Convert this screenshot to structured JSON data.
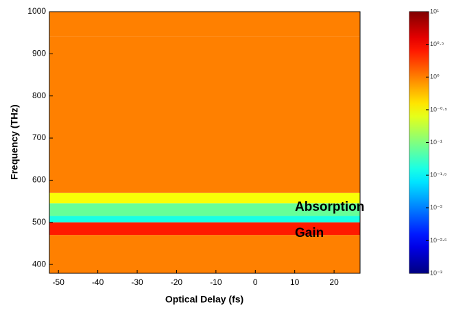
{
  "chart_data": {
    "type": "heatmap",
    "x_label": "Optical Delay (fs)",
    "y_label": "Frequency (THz)",
    "xlim": [
      -52.3,
      26.6
    ],
    "xticks": [
      -50,
      -40,
      -30,
      -20,
      -10,
      0,
      10,
      20
    ],
    "ylim": [
      379,
      1000
    ],
    "yticks": [
      400,
      500,
      600,
      700,
      800,
      900,
      1000
    ],
    "y_bins": [
      379,
      470,
      500,
      515,
      545,
      570,
      940,
      1000
    ],
    "values": [
      1.0,
      2.5,
      0.04,
      0.08,
      0.3,
      1.0,
      1.0
    ],
    "colormap": "jet",
    "color_scale": "log",
    "clim": [
      0.001,
      10
    ],
    "cticks": [
      {
        "value": 10,
        "label": "10¹"
      },
      {
        "value": 3.162,
        "label": "10⁰·⁵"
      },
      {
        "value": 1,
        "label": "10⁰"
      },
      {
        "value": 0.3162,
        "label": "10⁻⁰·⁵"
      },
      {
        "value": 0.1,
        "label": "10⁻¹"
      },
      {
        "value": 0.03162,
        "label": "10⁻¹·⁵"
      },
      {
        "value": 0.01,
        "label": "10⁻²"
      },
      {
        "value": 0.003162,
        "label": "10⁻²·⁵"
      },
      {
        "value": 0.001,
        "label": "10⁻³"
      }
    ],
    "annotations": [
      "Absorption",
      "Gain"
    ]
  }
}
